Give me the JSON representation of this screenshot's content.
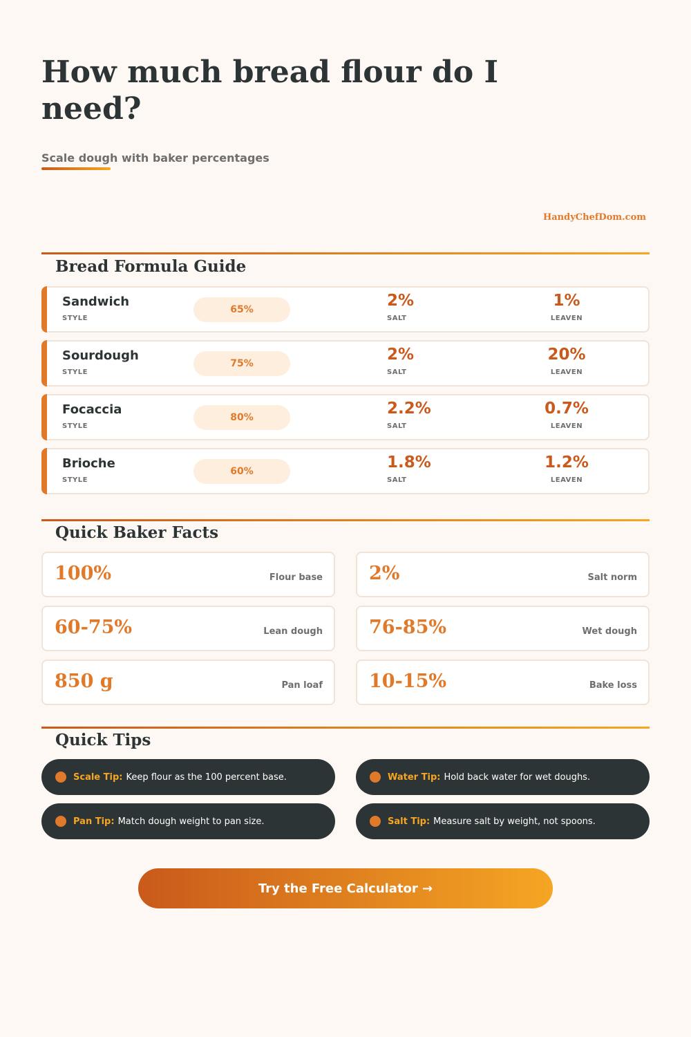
{
  "header": {
    "title": "How much bread flour do I need?",
    "subtitle": "Scale dough with baker percentages",
    "brand": "HandyChefDom.com"
  },
  "formula_guide": {
    "title": "Bread Formula Guide",
    "style_label": "STYLE",
    "salt_label": "SALT",
    "leaven_label": "LEAVEN",
    "rows": [
      {
        "name": "Sandwich",
        "hydration": "65%",
        "salt": "2%",
        "leaven": "1%"
      },
      {
        "name": "Sourdough",
        "hydration": "75%",
        "salt": "2%",
        "leaven": "20%"
      },
      {
        "name": "Focaccia",
        "hydration": "80%",
        "salt": "2.2%",
        "leaven": "0.7%"
      },
      {
        "name": "Brioche",
        "hydration": "60%",
        "salt": "1.8%",
        "leaven": "1.2%"
      }
    ]
  },
  "facts": {
    "title": "Quick Baker Facts",
    "items": [
      {
        "value": "100%",
        "label": "Flour base"
      },
      {
        "value": "2%",
        "label": "Salt norm"
      },
      {
        "value": "60-75%",
        "label": "Lean dough"
      },
      {
        "value": "76-85%",
        "label": "Wet dough"
      },
      {
        "value": "850 g",
        "label": "Pan loaf"
      },
      {
        "value": "10-15%",
        "label": "Bake loss"
      }
    ]
  },
  "tips": {
    "title": "Quick Tips",
    "items": [
      {
        "label": "Scale Tip:",
        "text": "Keep flour as the 100 percent base."
      },
      {
        "label": "Water Tip:",
        "text": "Hold back water for wet doughs."
      },
      {
        "label": "Pan Tip:",
        "text": "Match dough weight to pan size."
      },
      {
        "label": "Salt Tip:",
        "text": "Measure salt by weight, not spoons."
      }
    ]
  },
  "cta": {
    "label": "Try the Free Calculator →"
  },
  "colors": {
    "background": "#fdf8f3",
    "accent": "#e07a2a",
    "accent_dark": "#c95a1b",
    "accent_light": "#f5a623",
    "dark": "#2d3436"
  }
}
